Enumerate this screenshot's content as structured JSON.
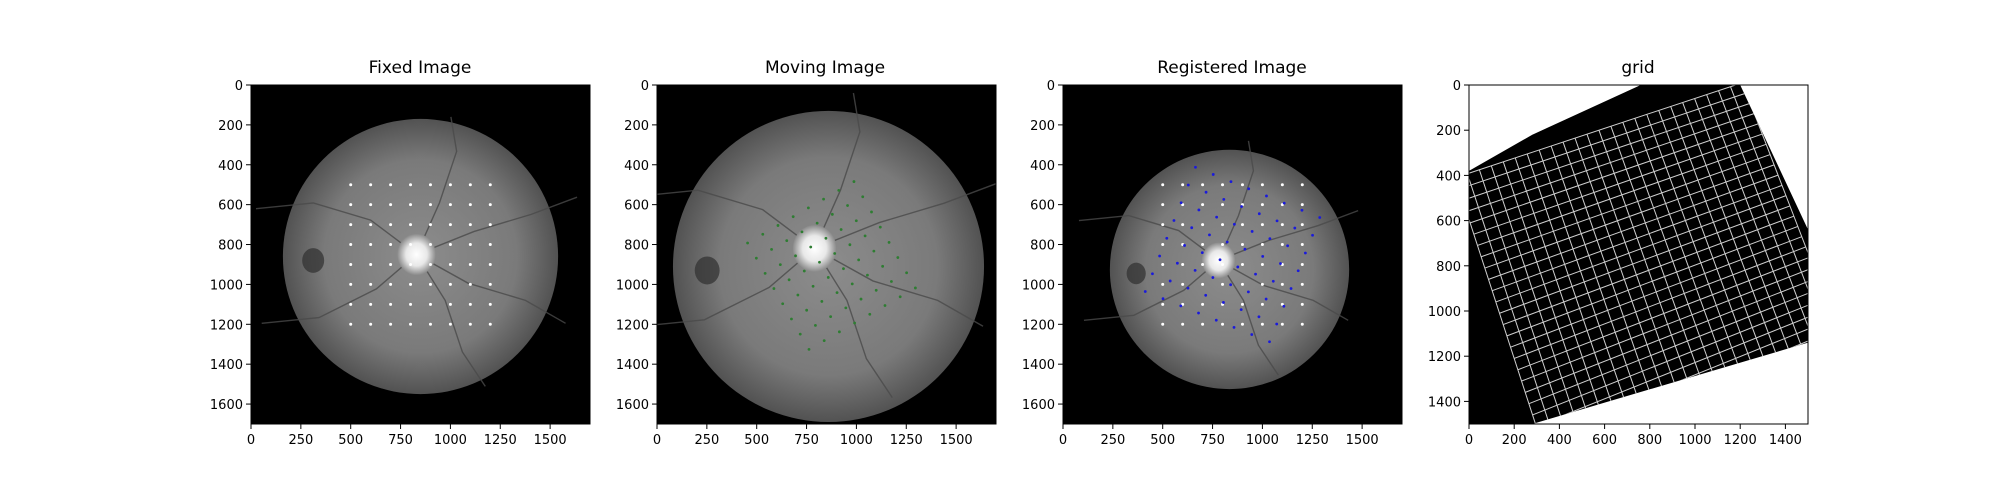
{
  "figure": {
    "titles": [
      "Fixed Image",
      "Moving Image",
      "Registered Image",
      "grid"
    ]
  },
  "chart_data": [
    {
      "type": "image",
      "title": "Fixed Image",
      "xlim": [
        0,
        1700
      ],
      "ylim": [
        1700,
        0
      ],
      "xticks": [
        0,
        250,
        500,
        750,
        1000,
        1250,
        1500
      ],
      "yticks": [
        0,
        200,
        400,
        600,
        800,
        1000,
        1200,
        1400,
        1600
      ],
      "background": "#000000",
      "fundus": {
        "cx": 850,
        "cy": 860,
        "r": 690,
        "disc": [
          830,
          850
        ]
      },
      "grid_points": {
        "color": "#ffffff",
        "x": [
          500,
          600,
          700,
          800,
          900,
          1000,
          1100,
          1200
        ],
        "y": [
          500,
          600,
          700,
          800,
          900,
          1000,
          1100,
          1200
        ]
      }
    },
    {
      "type": "image",
      "title": "Moving Image",
      "xlim": [
        0,
        1700
      ],
      "ylim": [
        1700,
        0
      ],
      "xticks": [
        0,
        250,
        500,
        750,
        1000,
        1250,
        1500
      ],
      "yticks": [
        0,
        200,
        400,
        600,
        800,
        1000,
        1200,
        1400,
        1600
      ],
      "background": "#000000",
      "fundus": {
        "cx": 860,
        "cy": 910,
        "r": 780,
        "disc": [
          790,
          820
        ]
      },
      "moved_points": {
        "color": "#2e7d32",
        "transform": {
          "center": [
            850,
            850
          ],
          "rotation_deg": -30,
          "scale": 0.88,
          "shift": [
            25,
            55
          ]
        },
        "source_x": [
          500,
          600,
          700,
          800,
          900,
          1000,
          1100,
          1200
        ],
        "source_y": [
          500,
          600,
          700,
          800,
          900,
          1000,
          1100,
          1200
        ]
      }
    },
    {
      "type": "image",
      "title": "Registered Image",
      "xlim": [
        0,
        1700
      ],
      "ylim": [
        1700,
        0
      ],
      "xticks": [
        0,
        250,
        500,
        750,
        1000,
        1250,
        1500
      ],
      "yticks": [
        0,
        200,
        400,
        600,
        800,
        1000,
        1200,
        1400,
        1600
      ],
      "background": "#000000",
      "fundus": {
        "cx": 835,
        "cy": 925,
        "r": 600,
        "disc": [
          780,
          880
        ]
      },
      "grid_points": {
        "color": "#ffffff",
        "x": [
          500,
          600,
          700,
          800,
          900,
          1000,
          1100,
          1200
        ],
        "y": [
          500,
          600,
          700,
          800,
          900,
          1000,
          1100,
          1200
        ]
      },
      "registered_points": {
        "color": "#1a1adc",
        "transform": {
          "center": [
            850,
            850
          ],
          "rotation_deg": 22,
          "scale": 0.96,
          "shift": [
            0,
            0
          ]
        },
        "source_x": [
          500,
          600,
          700,
          800,
          900,
          1000,
          1100,
          1200
        ],
        "source_y": [
          500,
          600,
          700,
          800,
          900,
          1000,
          1100,
          1200
        ]
      }
    },
    {
      "type": "image",
      "title": "grid",
      "xlim": [
        0,
        1500
      ],
      "ylim": [
        1500,
        0
      ],
      "xticks": [
        0,
        200,
        400,
        600,
        800,
        1000,
        1200,
        1400
      ],
      "yticks": [
        0,
        200,
        400,
        600,
        800,
        1000,
        1200,
        1400
      ],
      "background": "#ffffff",
      "warped_grid": {
        "fill": "#000000",
        "line_color": "#cfcfcf",
        "corners": [
          [
            1200,
            0
          ],
          [
            1500,
            640
          ],
          [
            1500,
            1140
          ],
          [
            280,
            1500
          ],
          [
            0,
            1500
          ],
          [
            0,
            900
          ],
          [
            0,
            380
          ],
          [
            280,
            220
          ],
          [
            760,
            0
          ]
        ],
        "quad": {
          "top_left": [
            -60,
            410
          ],
          "top_right": [
            1210,
            -10
          ],
          "bottom_right": [
            1630,
            1080
          ],
          "bottom_left": [
            330,
            1610
          ]
        },
        "divisions": 24
      }
    }
  ]
}
